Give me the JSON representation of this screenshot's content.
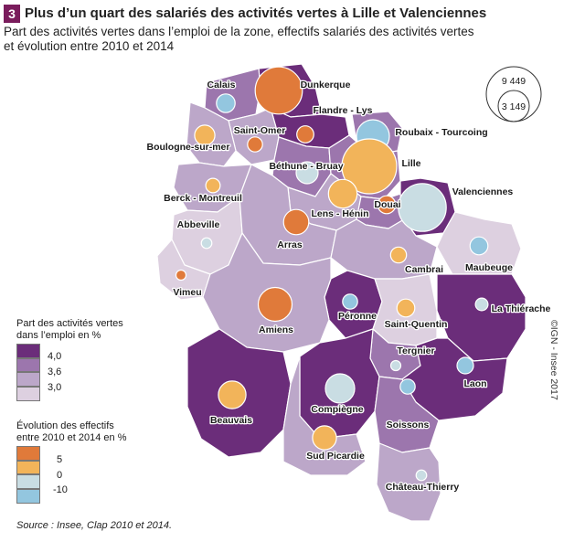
{
  "figure": {
    "number": "3",
    "title": "Plus d’un quart des salariés des activités vertes à Lille et Valenciennes",
    "subtitle_line1": "Part des activités vertes dans l’emploi de la zone, effectifs salariés des activités vertes",
    "subtitle_line2": "et évolution entre 2010 et 2014"
  },
  "legend_share": {
    "title_line1": "Part des activités vertes",
    "title_line2": "dans l’emploi en %",
    "breaks": [
      "4,0",
      "3,6",
      "3,0"
    ],
    "colors": [
      "#6b2d7a",
      "#9c76ad",
      "#bca7c9",
      "#ddd0e0"
    ]
  },
  "legend_evolution": {
    "title_line1": "Évolution des effectifs",
    "title_line2": "entre 2010 et 2014 en %",
    "breaks": [
      "5",
      "0",
      "-10"
    ],
    "colors": [
      "#e07a3a",
      "#f2b45a",
      "#c9dde3",
      "#93c6df"
    ]
  },
  "legend_size": {
    "large": "9 449",
    "small": "3 149"
  },
  "zones": [
    {
      "name": "Dunkerque",
      "share_class": 0,
      "evo_class": 0,
      "employees": 7000
    },
    {
      "name": "Calais",
      "share_class": 1,
      "evo_class": 3,
      "employees": 1100
    },
    {
      "name": "Flandre - Lys",
      "share_class": 0,
      "evo_class": 0,
      "employees": 900
    },
    {
      "name": "Roubaix - Tourcoing",
      "share_class": 1,
      "evo_class": 3,
      "employees": 3400
    },
    {
      "name": "Saint-Omer",
      "share_class": 2,
      "evo_class": 0,
      "employees": 700
    },
    {
      "name": "Boulogne-sur-mer",
      "share_class": 2,
      "evo_class": 1,
      "employees": 1300
    },
    {
      "name": "Béthune - Bruay",
      "share_class": 1,
      "evo_class": 2,
      "employees": 1500
    },
    {
      "name": "Lille",
      "share_class": 1,
      "evo_class": 1,
      "employees": 9449
    },
    {
      "name": "Berck - Montreuil",
      "share_class": 2,
      "evo_class": 1,
      "employees": 650
    },
    {
      "name": "Lens - Hénin",
      "share_class": 2,
      "evo_class": 1,
      "employees": 2600
    },
    {
      "name": "Douai",
      "share_class": 1,
      "evo_class": 0,
      "employees": 1000
    },
    {
      "name": "Valenciennes",
      "share_class": 0,
      "evo_class": 2,
      "employees": 7200
    },
    {
      "name": "Abbeville",
      "share_class": 3,
      "evo_class": 2,
      "employees": 350
    },
    {
      "name": "Arras",
      "share_class": 2,
      "evo_class": 0,
      "employees": 2000
    },
    {
      "name": "Cambrai",
      "share_class": 2,
      "evo_class": 1,
      "employees": 800
    },
    {
      "name": "Maubeuge",
      "share_class": 3,
      "evo_class": 3,
      "employees": 1000
    },
    {
      "name": "Vimeu",
      "share_class": 3,
      "evo_class": 0,
      "employees": 300
    },
    {
      "name": "Péronne",
      "share_class": 0,
      "evo_class": 3,
      "employees": 700
    },
    {
      "name": "La Thiérache",
      "share_class": 0,
      "evo_class": 2,
      "employees": 500
    },
    {
      "name": "Amiens",
      "share_class": 2,
      "evo_class": 0,
      "employees": 3600
    },
    {
      "name": "Saint-Quentin",
      "share_class": 3,
      "evo_class": 1,
      "employees": 1000
    },
    {
      "name": "Tergnier",
      "share_class": 1,
      "evo_class": 2,
      "employees": 280
    },
    {
      "name": "Laon",
      "share_class": 0,
      "evo_class": 3,
      "employees": 850
    },
    {
      "name": "Beauvais",
      "share_class": 0,
      "evo_class": 1,
      "employees": 2400
    },
    {
      "name": "Compiègne",
      "share_class": 0,
      "evo_class": 2,
      "employees": 2700
    },
    {
      "name": "Soissons",
      "share_class": 1,
      "evo_class": 3,
      "employees": 700
    },
    {
      "name": "Sud Picardie",
      "share_class": 2,
      "evo_class": 1,
      "employees": 1800
    },
    {
      "name": "Château-Thierry",
      "share_class": 2,
      "evo_class": 2,
      "employees": 350
    }
  ],
  "source": "Source : Insee, Clap 2010 et 2014.",
  "credit": "©IGN - Insee 2017"
}
